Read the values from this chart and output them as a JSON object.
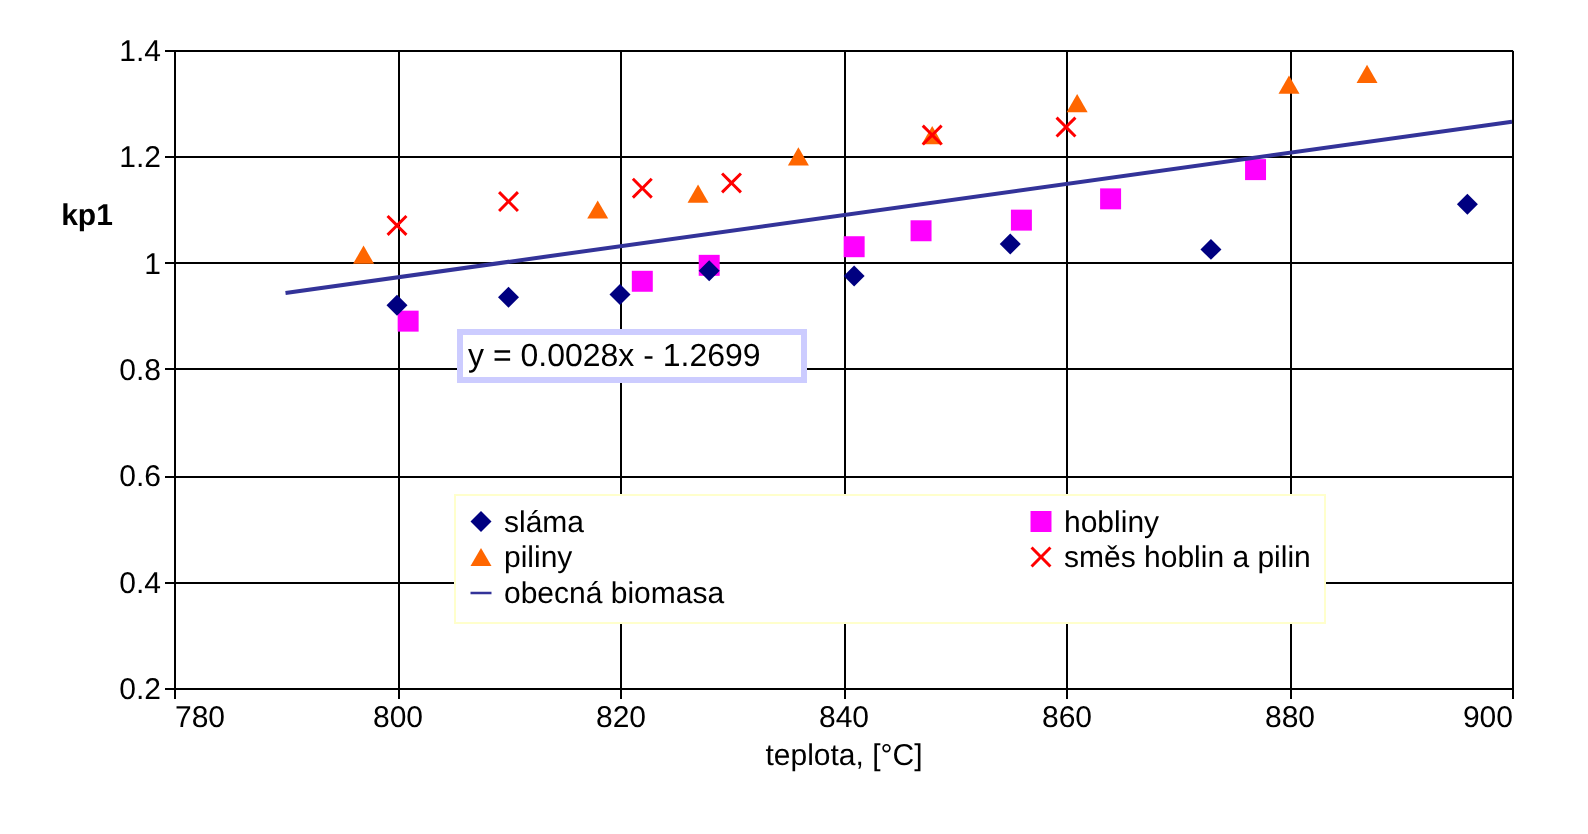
{
  "chart_data": {
    "type": "scatter",
    "xlabel": "teplota, [°C]",
    "ylabel": "kp1",
    "xlim": [
      780,
      900
    ],
    "xticks": [
      780,
      800,
      820,
      840,
      860,
      880,
      900
    ],
    "ylim": [
      0.2,
      1.4
    ],
    "yticks": [
      0.2,
      0.4,
      0.6,
      0.8,
      1,
      1.2,
      1.4
    ],
    "grid": true,
    "legend": "bottom",
    "annotations": [
      "y = 0.0028x - 1.2699"
    ],
    "series": [
      {
        "name": "sláma",
        "color": "#000080",
        "marker": "diamond",
        "x": [
          800,
          810,
          820,
          828,
          841,
          855,
          873,
          896
        ],
        "values": [
          0.92,
          0.935,
          0.94,
          0.985,
          0.975,
          1.035,
          1.025,
          1.11
        ]
      },
      {
        "name": "hobliny",
        "color": "#ff00ff",
        "marker": "square",
        "x": [
          801,
          822,
          828,
          841,
          847,
          856,
          864,
          877
        ],
        "values": [
          0.89,
          0.965,
          0.995,
          1.03,
          1.06,
          1.08,
          1.12,
          1.175
        ]
      },
      {
        "name": "piliny",
        "color": "#ff6600",
        "marker": "triangle",
        "x": [
          797,
          818,
          827,
          836,
          848,
          861,
          880,
          887
        ],
        "values": [
          1.015,
          1.1,
          1.13,
          1.2,
          1.24,
          1.3,
          1.335,
          1.355
        ]
      },
      {
        "name": "směs hoblin a pilin",
        "color": "#ff0000",
        "marker": "cross",
        "x": [
          800,
          810,
          822,
          830,
          848,
          860
        ],
        "values": [
          1.07,
          1.115,
          1.14,
          1.15,
          1.24,
          1.255
        ]
      },
      {
        "name": "obecná biomasa",
        "type": "line",
        "color": "#333399",
        "marker": "none",
        "line_style": "solid",
        "x": [
          790,
          900
        ],
        "values": [
          0.943,
          1.265
        ]
      }
    ]
  }
}
